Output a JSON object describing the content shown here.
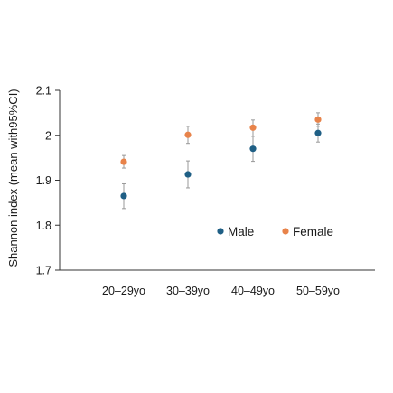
{
  "chart_data": {
    "type": "scatter",
    "title": "",
    "xlabel": "",
    "ylabel": "Shannon index (mean with95%CI)",
    "ylim": [
      1.7,
      2.1
    ],
    "yticks": [
      1.7,
      1.8,
      1.9,
      2.0,
      2.1
    ],
    "ytick_labels": [
      "1.7",
      "1.8",
      "1.9",
      "2",
      "2.1"
    ],
    "categories": [
      "20–29yo",
      "30–39yo",
      "40–49yo",
      "50–59yo"
    ],
    "grid": false,
    "legend_position": "center-right",
    "error_bars": "95% CI",
    "series": [
      {
        "name": "Male",
        "color": "#1f5f85",
        "values": [
          1.865,
          1.913,
          1.97,
          2.005
        ],
        "ci_low": [
          1.837,
          1.883,
          1.942,
          1.985
        ],
        "ci_high": [
          1.892,
          1.943,
          1.998,
          2.025
        ]
      },
      {
        "name": "Female",
        "color": "#e8834a",
        "values": [
          1.941,
          2.001,
          2.017,
          2.035
        ],
        "ci_low": [
          1.927,
          1.982,
          1.998,
          2.02
        ],
        "ci_high": [
          1.955,
          2.02,
          2.034,
          2.05
        ]
      }
    ]
  }
}
